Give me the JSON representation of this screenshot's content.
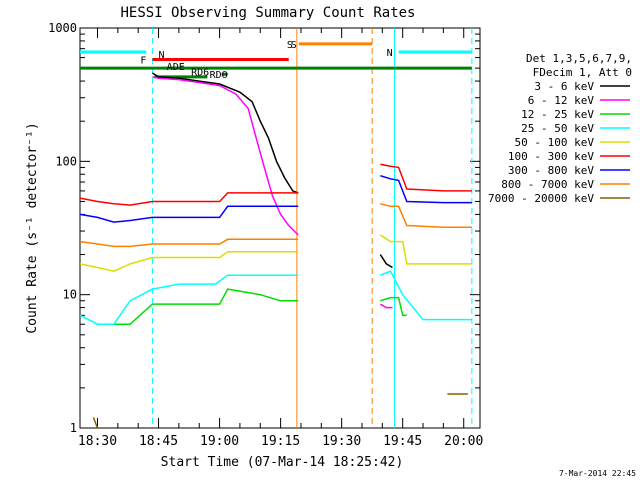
{
  "chart_data": {
    "type": "line",
    "title": "HESSI Observing Summary Count Rates",
    "xlabel": "Start Time (07-Mar-14 18:25:42)",
    "ylabel": "Count Rate (s⁻¹ detector⁻¹)",
    "yscale": "log",
    "ylim": [
      1,
      1000
    ],
    "xlim": [
      "18:25:42",
      "20:04:00"
    ],
    "x_ticks": [
      "18:30",
      "18:45",
      "19:00",
      "19:15",
      "19:30",
      "19:45",
      "20:00"
    ],
    "y_ticks": [
      "1",
      "10",
      "100",
      "1000"
    ],
    "legend": {
      "header1": "Det 1,3,5,6,7,9,",
      "header2": "FDecim 1, Att 0",
      "placement": "right"
    },
    "footer_date": "7-Mar-2014 22:45",
    "series": [
      {
        "name": "3 - 6 keV",
        "color": "#000000",
        "points": [
          [
            "18:43:30",
            460
          ],
          [
            "18:45",
            430
          ],
          [
            "18:50",
            420
          ],
          [
            "18:55",
            400
          ],
          [
            "19:00",
            380
          ],
          [
            "19:05",
            330
          ],
          [
            "19:08",
            280
          ],
          [
            "19:10",
            200
          ],
          [
            "19:12",
            150
          ],
          [
            "19:14",
            100
          ],
          [
            "19:16",
            75
          ],
          [
            "19:18",
            60
          ],
          [
            "19:19:20",
            58
          ],
          null,
          [
            "19:39:30",
            20
          ],
          [
            "19:41",
            17
          ],
          [
            "19:42:30",
            16
          ]
        ]
      },
      {
        "name": "6 - 12 keV",
        "color": "#ff00ff",
        "points": [
          [
            "18:43:30",
            430
          ],
          [
            "18:45",
            420
          ],
          [
            "18:50",
            410
          ],
          [
            "18:55",
            390
          ],
          [
            "19:00",
            370
          ],
          [
            "19:04",
            320
          ],
          [
            "19:07",
            250
          ],
          [
            "19:09",
            150
          ],
          [
            "19:11",
            90
          ],
          [
            "19:13",
            55
          ],
          [
            "19:15",
            40
          ],
          [
            "19:17",
            33
          ],
          [
            "19:19:20",
            28
          ],
          null,
          [
            "19:39:30",
            8.5
          ],
          [
            "19:41",
            8
          ],
          [
            "19:42:30",
            8
          ]
        ]
      },
      {
        "name": "12 - 25 keV",
        "color": "#00dd00",
        "points": [
          [
            "18:33",
            6
          ],
          [
            "18:38",
            6
          ],
          [
            "18:43:30",
            8.5
          ],
          [
            "18:50",
            8.5
          ],
          [
            "19:00",
            8.5
          ],
          [
            "19:02",
            11
          ],
          [
            "19:10",
            10
          ],
          [
            "19:15",
            9
          ],
          [
            "19:19:20",
            9
          ],
          null,
          [
            "19:39:30",
            9
          ],
          [
            "19:42",
            9.5
          ],
          [
            "19:44",
            9.5
          ],
          [
            "19:45",
            7
          ],
          [
            "19:46",
            7
          ]
        ]
      },
      {
        "name": "25 - 50 keV",
        "color": "#00ffff",
        "points": [
          [
            "18:25:42",
            7
          ],
          [
            "18:30",
            6
          ],
          [
            "18:34",
            6
          ],
          [
            "18:38",
            9
          ],
          [
            "18:43:30",
            11
          ],
          [
            "18:50",
            12
          ],
          [
            "18:59",
            12
          ],
          [
            "19:02",
            14
          ],
          [
            "19:10",
            14
          ],
          [
            "19:19:20",
            14
          ],
          null,
          [
            "19:39:30",
            14
          ],
          [
            "19:42",
            15
          ],
          [
            "19:45",
            10
          ],
          [
            "19:50",
            6.5
          ],
          [
            "20:02",
            6.5
          ]
        ]
      },
      {
        "name": "50 - 100 keV",
        "color": "#dddd00",
        "points": [
          [
            "18:25:42",
            17
          ],
          [
            "18:30",
            16
          ],
          [
            "18:34",
            15
          ],
          [
            "18:38",
            17
          ],
          [
            "18:43:30",
            19
          ],
          [
            "19:00",
            19
          ],
          [
            "19:02",
            21
          ],
          [
            "19:19:20",
            21
          ],
          null,
          [
            "19:39:30",
            28
          ],
          [
            "19:42",
            25
          ],
          [
            "19:45",
            25
          ],
          [
            "19:46",
            17
          ],
          [
            "19:55",
            17
          ],
          [
            "20:02",
            17
          ]
        ]
      },
      {
        "name": "100 - 300 keV",
        "color": "#ff0000",
        "points": [
          [
            "18:25:42",
            53
          ],
          [
            "18:30",
            50
          ],
          [
            "18:34",
            48
          ],
          [
            "18:38",
            47
          ],
          [
            "18:43:30",
            50
          ],
          [
            "19:00",
            50
          ],
          [
            "19:02",
            58
          ],
          [
            "19:19:20",
            58
          ],
          null,
          [
            "19:39:30",
            95
          ],
          [
            "19:42",
            92
          ],
          [
            "19:44",
            90
          ],
          [
            "19:46",
            62
          ],
          [
            "19:55",
            60
          ],
          [
            "20:02",
            60
          ]
        ]
      },
      {
        "name": "300 - 800 keV",
        "color": "#0000ff",
        "points": [
          [
            "18:25:42",
            40
          ],
          [
            "18:30",
            38
          ],
          [
            "18:34",
            35
          ],
          [
            "18:38",
            36
          ],
          [
            "18:43:30",
            38
          ],
          [
            "19:00",
            38
          ],
          [
            "19:02",
            46
          ],
          [
            "19:19:20",
            46
          ],
          null,
          [
            "19:39:30",
            78
          ],
          [
            "19:42",
            74
          ],
          [
            "19:44",
            72
          ],
          [
            "19:46",
            50
          ],
          [
            "19:55",
            49
          ],
          [
            "20:02",
            49
          ]
        ]
      },
      {
        "name": "800 - 7000 keV",
        "color": "#ff7f00",
        "points": [
          [
            "18:25:42",
            25
          ],
          [
            "18:30",
            24
          ],
          [
            "18:34",
            23
          ],
          [
            "18:38",
            23
          ],
          [
            "18:43:30",
            24
          ],
          [
            "19:00",
            24
          ],
          [
            "19:02",
            26
          ],
          [
            "19:19:20",
            26
          ],
          null,
          [
            "19:39:30",
            48
          ],
          [
            "19:42",
            46
          ],
          [
            "19:44",
            46
          ],
          [
            "19:46",
            33
          ],
          [
            "19:55",
            32
          ],
          [
            "20:02",
            32
          ]
        ]
      },
      {
        "name": "7000 - 20000 keV",
        "color": "#806000",
        "points": [
          [
            "18:29",
            1.2
          ],
          [
            "18:30",
            1
          ],
          null,
          [
            "19:56",
            1.8
          ],
          [
            "20:01",
            1.8
          ]
        ]
      }
    ],
    "flag_bars": [
      {
        "label": "",
        "color": "#00ffff",
        "from": "18:25:42",
        "to": "18:42",
        "level": 660
      },
      {
        "label": "N",
        "color": "#00ffff",
        "from": "19:44",
        "to": "20:02",
        "level": 660
      },
      {
        "label": "F",
        "color": "#ff0000",
        "from": "18:43:30",
        "to": "19:17",
        "level": 580
      },
      {
        "label": "S",
        "color": "#ff7f00",
        "from": "19:19:30",
        "to": "19:37:30",
        "level": 760
      },
      {
        "label": "",
        "color": "#008000",
        "from": "18:25:42",
        "to": "20:02",
        "level": 500
      },
      {
        "label": "",
        "color": "#008000",
        "from": "18:44",
        "to": "18:57",
        "level": 430
      },
      {
        "label": "RDO",
        "color": "#008000",
        "from": "19:00:30",
        "to": "19:02",
        "level": 450
      }
    ],
    "flag_labels": [
      "N",
      "F",
      "S",
      "ADE",
      "RD6",
      "RDO"
    ],
    "vertical_markers": [
      {
        "time": "18:43:30",
        "color": "#00ffff",
        "style": "dashed"
      },
      {
        "time": "19:19",
        "color": "#ff7f00",
        "style": "solid"
      },
      {
        "time": "19:37:30",
        "color": "#ff7f00",
        "style": "dashed"
      },
      {
        "time": "19:43",
        "color": "#00ffff",
        "style": "solid"
      },
      {
        "time": "20:02",
        "color": "#00ffff",
        "style": "dashed"
      }
    ]
  }
}
